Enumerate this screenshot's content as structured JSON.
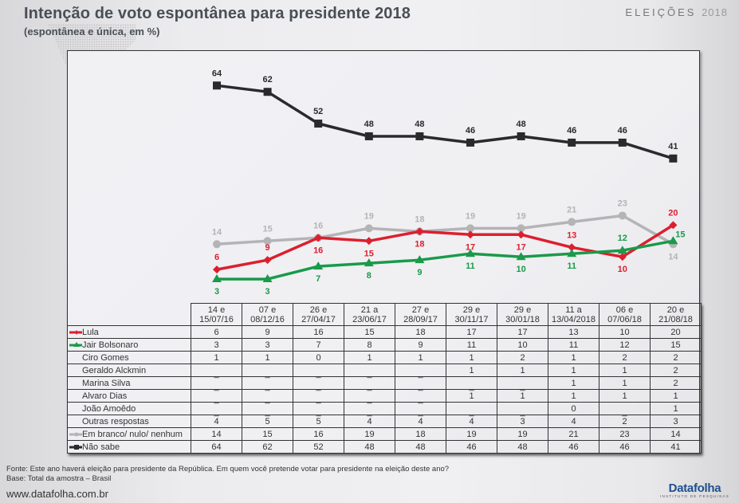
{
  "header": {
    "title": "Intenção de voto espontânea para presidente 2018",
    "subtitle": "(espontânea e única, em %)",
    "brand_label": "ELEIÇÕES",
    "brand_year": "2018"
  },
  "footer": {
    "source": "Fonte:  Este ano haverá eleição para presidente da República. Em quem você pretende votar para presidente na eleição deste ano?",
    "base": "Base: Total da amostra – Brasil",
    "url": "www.datafolha.com.br",
    "logo": "Datafolha",
    "logo_sub": "INSTITUTO DE PESQUISAS"
  },
  "colors": {
    "lula": "#dc1f2e",
    "bolsonaro": "#1a9a4a",
    "branco": "#b4b4b6",
    "nao_sabe": "#2a2a2c"
  },
  "chart_data": {
    "type": "line",
    "title": "Intenção de voto espontânea para presidente 2018",
    "subtitle": "(espontânea e única, em %)",
    "xlabel": "",
    "ylabel": "%",
    "ylim": [
      0,
      70
    ],
    "grid": false,
    "legend": "table-below",
    "categories": [
      [
        "14 e",
        "15/07/16"
      ],
      [
        "07 e",
        "08/12/16"
      ],
      [
        "26 e",
        "27/04/17"
      ],
      [
        "21 a",
        "23/06/17"
      ],
      [
        "27 e",
        "28/09/17"
      ],
      [
        "29 e",
        "30/11/17"
      ],
      [
        "29 e",
        "30/01/18"
      ],
      [
        "11 a",
        "13/04/2018"
      ],
      [
        "06 e",
        "07/06/18"
      ],
      [
        "20 e",
        "21/08/18"
      ]
    ],
    "series": [
      {
        "name": "Não sabe",
        "key": "nao_sabe",
        "marker": "square",
        "values": [
          64,
          62,
          52,
          48,
          48,
          46,
          48,
          46,
          46,
          41
        ],
        "label_pos": [
          "above",
          "above",
          "above",
          "above",
          "above",
          "above",
          "above",
          "above",
          "above",
          "above"
        ]
      },
      {
        "name": "Em branco/ nulo/ nenhum",
        "key": "branco",
        "marker": "circle",
        "values": [
          14,
          15,
          16,
          19,
          18,
          19,
          19,
          21,
          23,
          14
        ],
        "label_pos": [
          "above",
          "above",
          "above",
          "above",
          "above",
          "above",
          "above",
          "above",
          "above",
          "below"
        ]
      },
      {
        "name": "Lula",
        "key": "lula",
        "marker": "diamond",
        "values": [
          6,
          9,
          16,
          15,
          18,
          17,
          17,
          13,
          10,
          20
        ],
        "label_pos": [
          "above",
          "above",
          "below",
          "below",
          "below",
          "below",
          "below",
          "above",
          "below",
          "above"
        ]
      },
      {
        "name": "Jair Bolsonaro",
        "key": "bolsonaro",
        "marker": "triangle",
        "values": [
          3,
          3,
          7,
          8,
          9,
          11,
          10,
          11,
          12,
          15
        ],
        "label_pos": [
          "below",
          "below",
          "below",
          "below",
          "below",
          "below",
          "below",
          "below",
          "above",
          "right"
        ]
      }
    ]
  },
  "table": {
    "rows": [
      {
        "name": "Lula",
        "swatch": "lula",
        "values": [
          "6",
          "9",
          "16",
          "15",
          "18",
          "17",
          "17",
          "13",
          "10",
          "20"
        ]
      },
      {
        "name": "Jair Bolsonaro",
        "swatch": "bolsonaro",
        "values": [
          "3",
          "3",
          "7",
          "8",
          "9",
          "11",
          "10",
          "11",
          "12",
          "15"
        ]
      },
      {
        "name": "Ciro Gomes",
        "swatch": "",
        "values": [
          "1",
          "1",
          "0",
          "1",
          "1",
          "1",
          "2",
          "1",
          "2",
          "2"
        ]
      },
      {
        "name": "Geraldo Alckmin",
        "swatch": "",
        "values": [
          "_",
          "_",
          "_",
          "_",
          "_",
          "1",
          "1",
          "1",
          "1",
          "2"
        ]
      },
      {
        "name": "Marina Silva",
        "swatch": "",
        "values": [
          "_",
          "_",
          "_",
          "_",
          "_",
          "_",
          "_",
          "1",
          "1",
          "2"
        ]
      },
      {
        "name": "Alvaro Dias",
        "swatch": "",
        "values": [
          "_",
          "_",
          "_",
          "_",
          "_",
          "1",
          "1",
          "1",
          "1",
          "1"
        ]
      },
      {
        "name": "João Amoêdo",
        "swatch": "",
        "values": [
          "_",
          "_",
          "_",
          "_",
          "_",
          "_",
          "_",
          "0",
          "_",
          "1"
        ]
      },
      {
        "name": "Outras respostas",
        "swatch": "",
        "values": [
          "4",
          "5",
          "5",
          "4",
          "4",
          "4",
          "3",
          "4",
          "2",
          "3"
        ]
      },
      {
        "name": "Em branco/ nulo/ nenhum",
        "swatch": "branco",
        "values": [
          "14",
          "15",
          "16",
          "19",
          "18",
          "19",
          "19",
          "21",
          "23",
          "14"
        ]
      },
      {
        "name": "Não sabe",
        "swatch": "nao_sabe",
        "values": [
          "64",
          "62",
          "52",
          "48",
          "48",
          "46",
          "48",
          "46",
          "46",
          "41"
        ]
      }
    ]
  }
}
